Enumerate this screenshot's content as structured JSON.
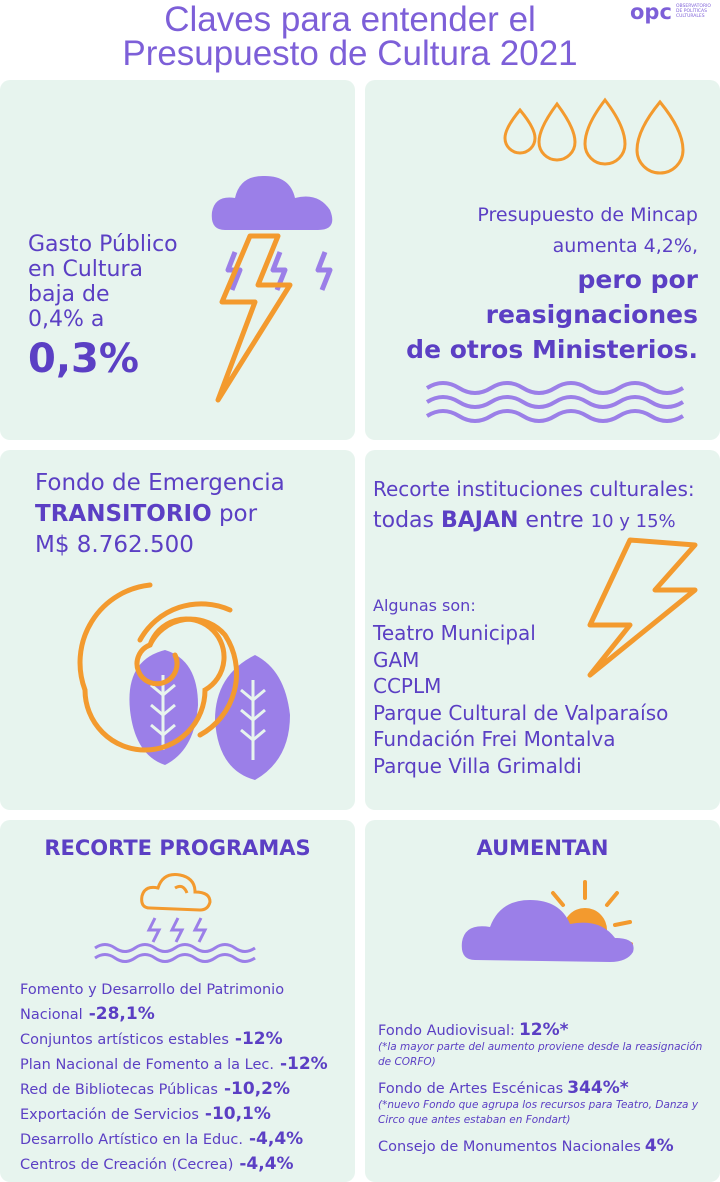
{
  "header": {
    "title_lines": [
      "Claves para entender el",
      "Presupuesto de Cultura 2021"
    ],
    "logo": "opc",
    "logo_subtitle": [
      "OBSERVATORIO",
      "DE POLÍTICAS",
      "CULTURALES"
    ]
  },
  "gasto": {
    "lines": [
      "Gasto Público",
      "en Cultura",
      "baja de",
      "0,4% a"
    ],
    "highlight": "0,3%"
  },
  "mincap": {
    "lines": [
      "Presupuesto de Mincap",
      "aumenta 4,2%,"
    ],
    "bold_lines": [
      "pero por",
      "reasignaciones",
      "de otros Ministerios."
    ]
  },
  "fondo_emergencia": {
    "line1": "Fondo de Emergencia",
    "bold": "TRANSITORIO",
    "after_bold": "por",
    "amount": "M$ 8.762.500"
  },
  "instituciones": {
    "line1": "Recorte instituciones culturales:",
    "line2_start": "todas",
    "line2_bold": "BAJAN",
    "line2_mid": "entre",
    "line2_range": "10 y 15%",
    "intro": "Algunas son:",
    "list": [
      "Teatro Municipal",
      "GAM",
      "CCPLM",
      "Parque Cultural de Valparaíso",
      "Fundación Frei Montalva",
      "Parque Villa Grimaldi"
    ]
  },
  "recorte_programas": {
    "title": "RECORTE PROGRAMAS",
    "items": [
      {
        "name": "Fomento y Desarrollo del Patrimonio Nacional",
        "value": "-28,1%"
      },
      {
        "name": "Conjuntos artísticos estables",
        "value": "-12%"
      },
      {
        "name": "Plan Nacional de Fomento a la Lec.",
        "value": "-12%"
      },
      {
        "name": "Red de Bibliotecas Públicas",
        "value": "-10,2%"
      },
      {
        "name": "Exportación de Servicios",
        "value": "-10,1%"
      },
      {
        "name": "Desarrollo Artístico en la Educ.",
        "value": "-4,4%"
      },
      {
        "name": "Centros de Creación (Cecrea)",
        "value": "-4,4%"
      }
    ]
  },
  "aumentan": {
    "title": "AUMENTAN",
    "items": [
      {
        "name": "Fondo Audiovisual:",
        "value": "12%*",
        "note": "(*la mayor parte del aumento proviene desde la reasignación de CORFO)"
      },
      {
        "name": "Fondo de Artes Escénicas",
        "value": "344%*",
        "note": "(*nuevo Fondo que agrupa los recursos para Teatro, Danza y Circo que antes estaban en Fondart)"
      },
      {
        "name": "Consejo de Monumentos Nacionales",
        "value": "4%"
      }
    ]
  }
}
